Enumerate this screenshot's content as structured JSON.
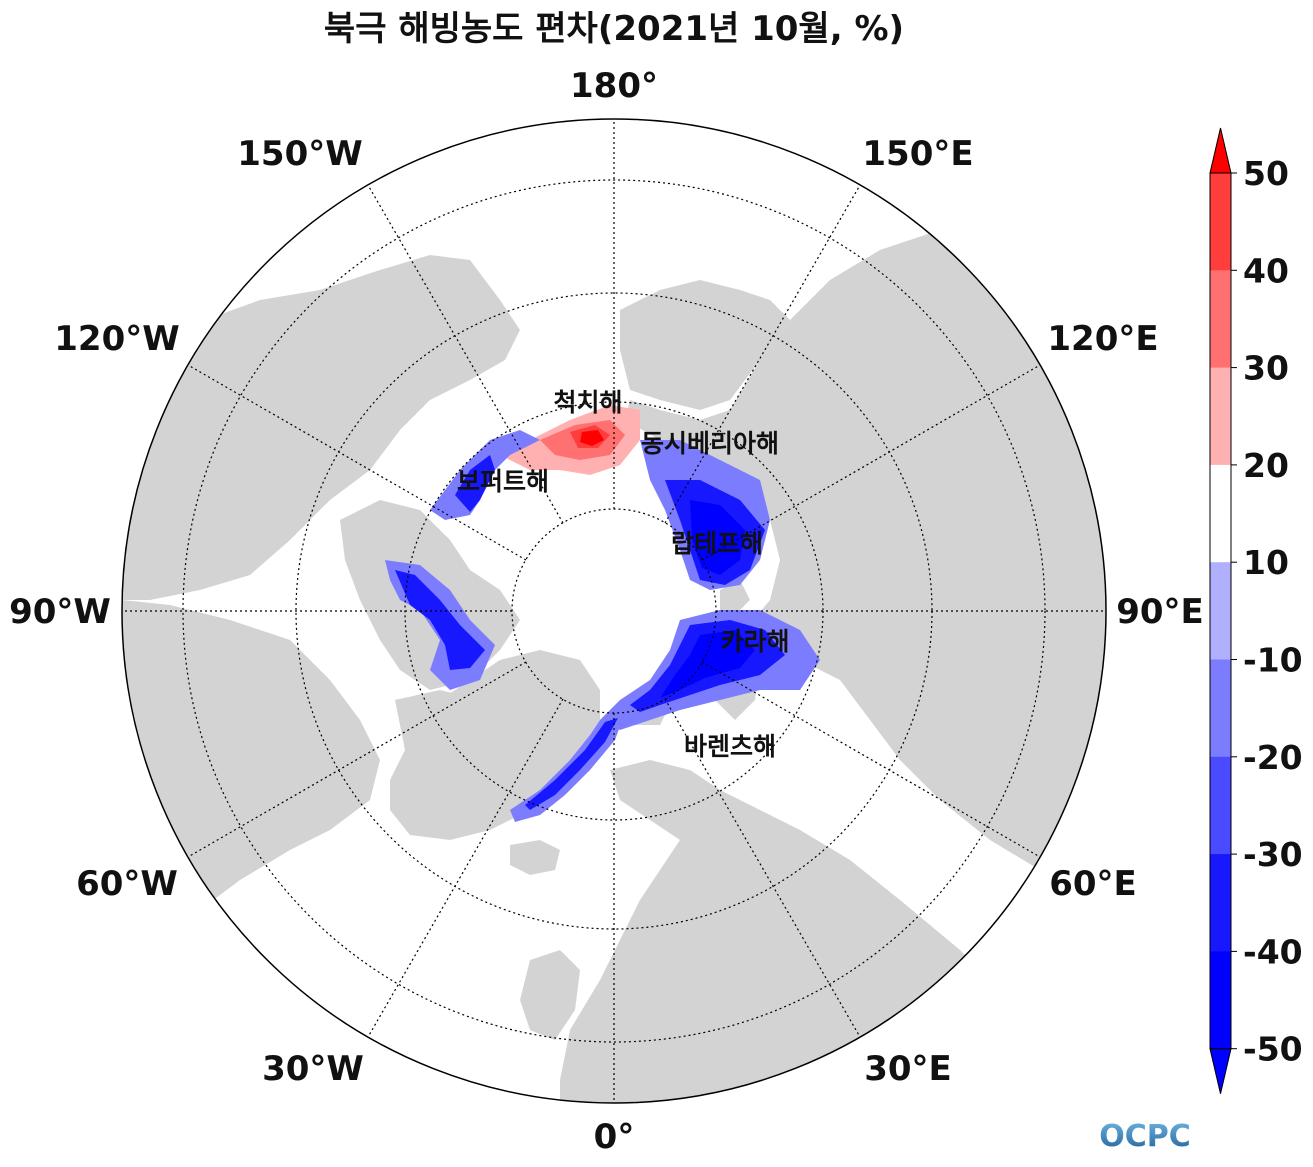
{
  "title": "북극 해빙농도 편차(2021년 10월, %)",
  "map": {
    "projection": "north-polar-stereographic",
    "longitude_labels": [
      "0°",
      "30°E",
      "60°E",
      "90°E",
      "120°E",
      "150°E",
      "180°",
      "150°W",
      "120°W",
      "90°W",
      "60°W",
      "30°W"
    ],
    "sea_labels": [
      "척치해",
      "동시베리아해",
      "보퍼트해",
      "랍테프해",
      "카라해",
      "바렌츠해"
    ],
    "land_color": "#d3d3d3",
    "ocean_color": "#ffffff"
  },
  "colorbar": {
    "levels": [
      "50",
      "40",
      "30",
      "20",
      "10",
      "-10",
      "-20",
      "-30",
      "-40",
      "-50"
    ],
    "colors": [
      "#ff0000",
      "#ff3d3d",
      "#ff7070",
      "#ffb0b0",
      "#ffffff",
      "#b0b0ff",
      "#7c7cff",
      "#4a4aff",
      "#1818ff",
      "#0000ff"
    ],
    "extend": "both"
  },
  "logo": {
    "text": "OCPC"
  }
}
